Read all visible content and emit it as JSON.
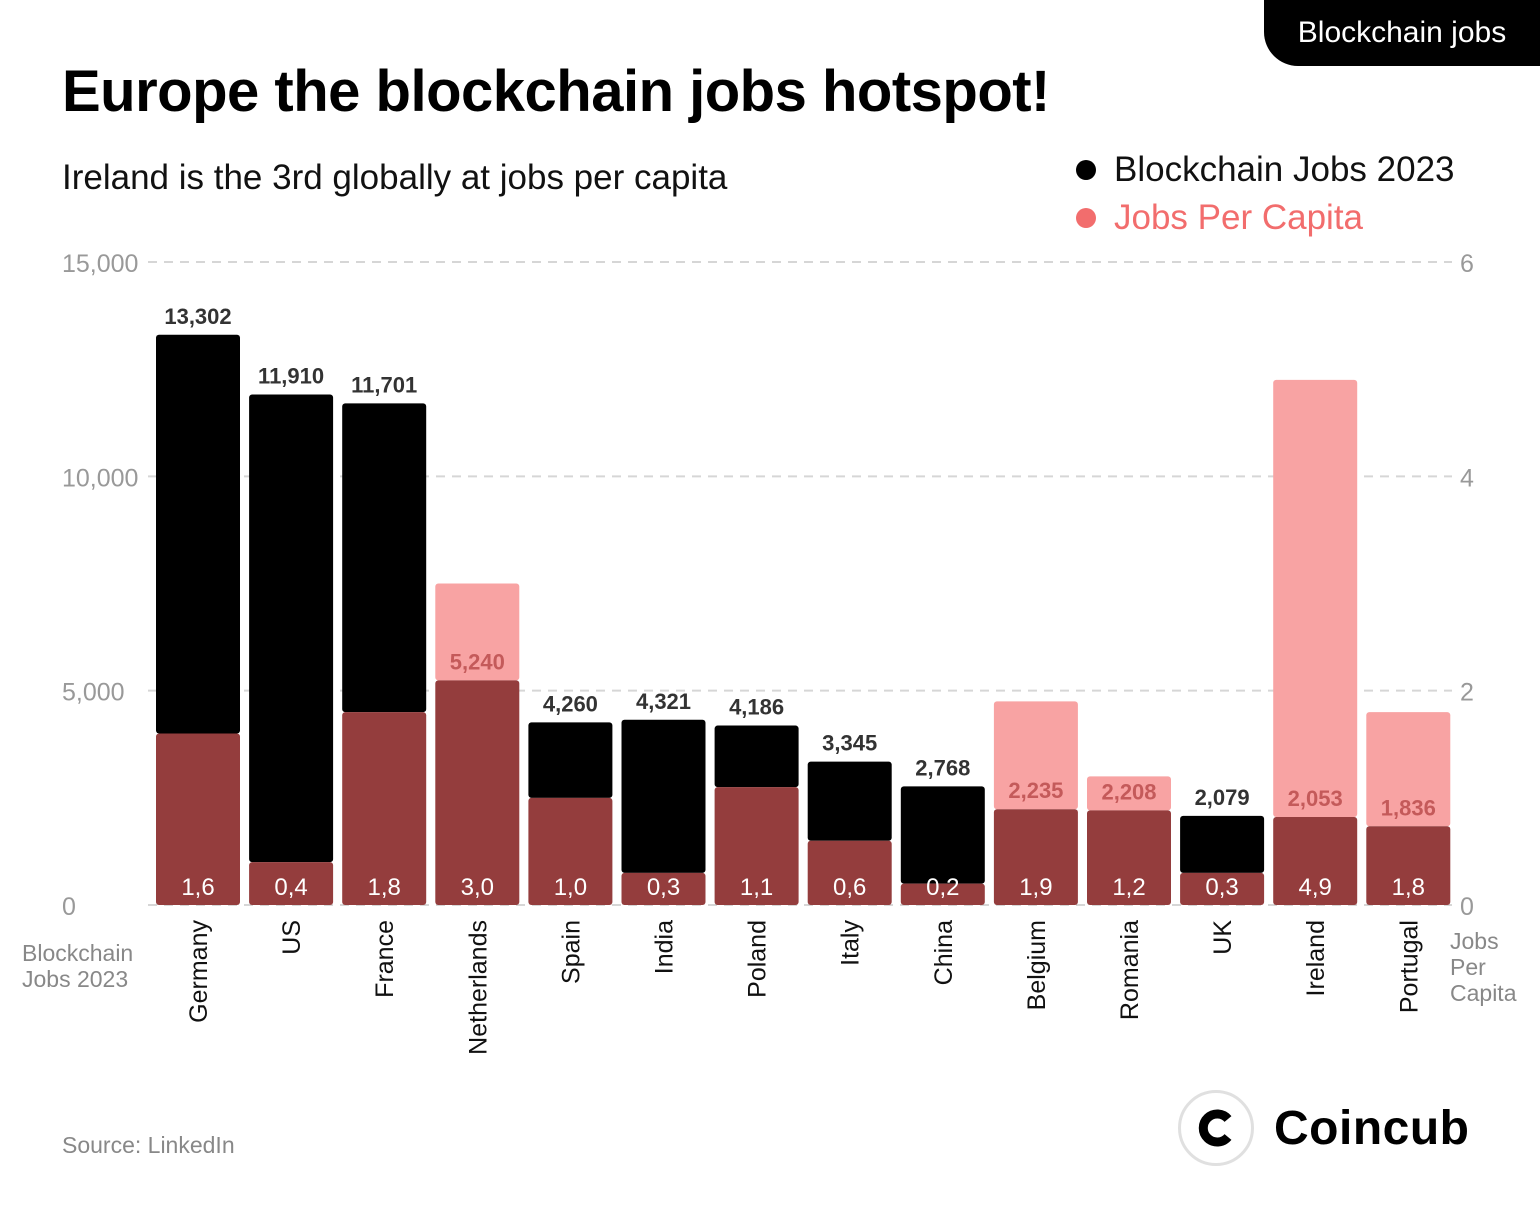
{
  "badge": "Blockchain jobs",
  "header": {
    "title": "Europe the blockchain jobs hotspot!",
    "subtitle": "Ireland is the 3rd globally at jobs per capita"
  },
  "legend": [
    {
      "label": "Blockchain Jobs 2023",
      "color": "#000000"
    },
    {
      "label": "Jobs Per Capita",
      "color": "#f26d6d"
    }
  ],
  "axes": {
    "left_title": "Blockchain\nJobs 2023",
    "right_title": "Jobs\nPer\nCapita"
  },
  "source": "Source: LinkedIn",
  "brand": {
    "name": "Coincub",
    "icon": "coincub-logo-icon"
  },
  "chart_data": {
    "type": "bar",
    "categories": [
      "Germany",
      "US",
      "France",
      "Netherlands",
      "Spain",
      "India",
      "Poland",
      "Italy",
      "China",
      "Belgium",
      "Romania",
      "UK",
      "Ireland",
      "Portugal"
    ],
    "series": [
      {
        "name": "Blockchain Jobs 2023",
        "axis": "left",
        "color": "#000000",
        "overlap_color": "#943d3d",
        "values": [
          13302,
          11910,
          11701,
          5240,
          4260,
          4321,
          4186,
          3345,
          2768,
          2235,
          2208,
          2079,
          2053,
          1836
        ],
        "labels": [
          "13,302",
          "11,910",
          "11,701",
          "5,240",
          "4,260",
          "4,321",
          "4,186",
          "3,345",
          "2,768",
          "2,235",
          "2,208",
          "2,079",
          "2,053",
          "1,836"
        ]
      },
      {
        "name": "Jobs Per Capita",
        "axis": "right",
        "color": "#f8a3a3",
        "values": [
          1.6,
          0.4,
          1.8,
          3.0,
          1.0,
          0.3,
          1.1,
          0.6,
          0.2,
          1.9,
          1.2,
          0.3,
          4.9,
          1.8
        ],
        "labels": [
          "1,6",
          "0,4",
          "1,8",
          "3,0",
          "1,0",
          "0,3",
          "1,1",
          "0,6",
          "0,2",
          "1,9",
          "1,2",
          "0,3",
          "4,9",
          "1,8"
        ]
      }
    ],
    "y_left": {
      "ylim": [
        0,
        15000
      ],
      "ticks": [
        "0",
        "5,000",
        "10,000",
        "15,000"
      ]
    },
    "y_right": {
      "ylim": [
        0,
        6
      ],
      "ticks": [
        "0",
        "2",
        "4",
        "6"
      ]
    },
    "grid": true
  }
}
